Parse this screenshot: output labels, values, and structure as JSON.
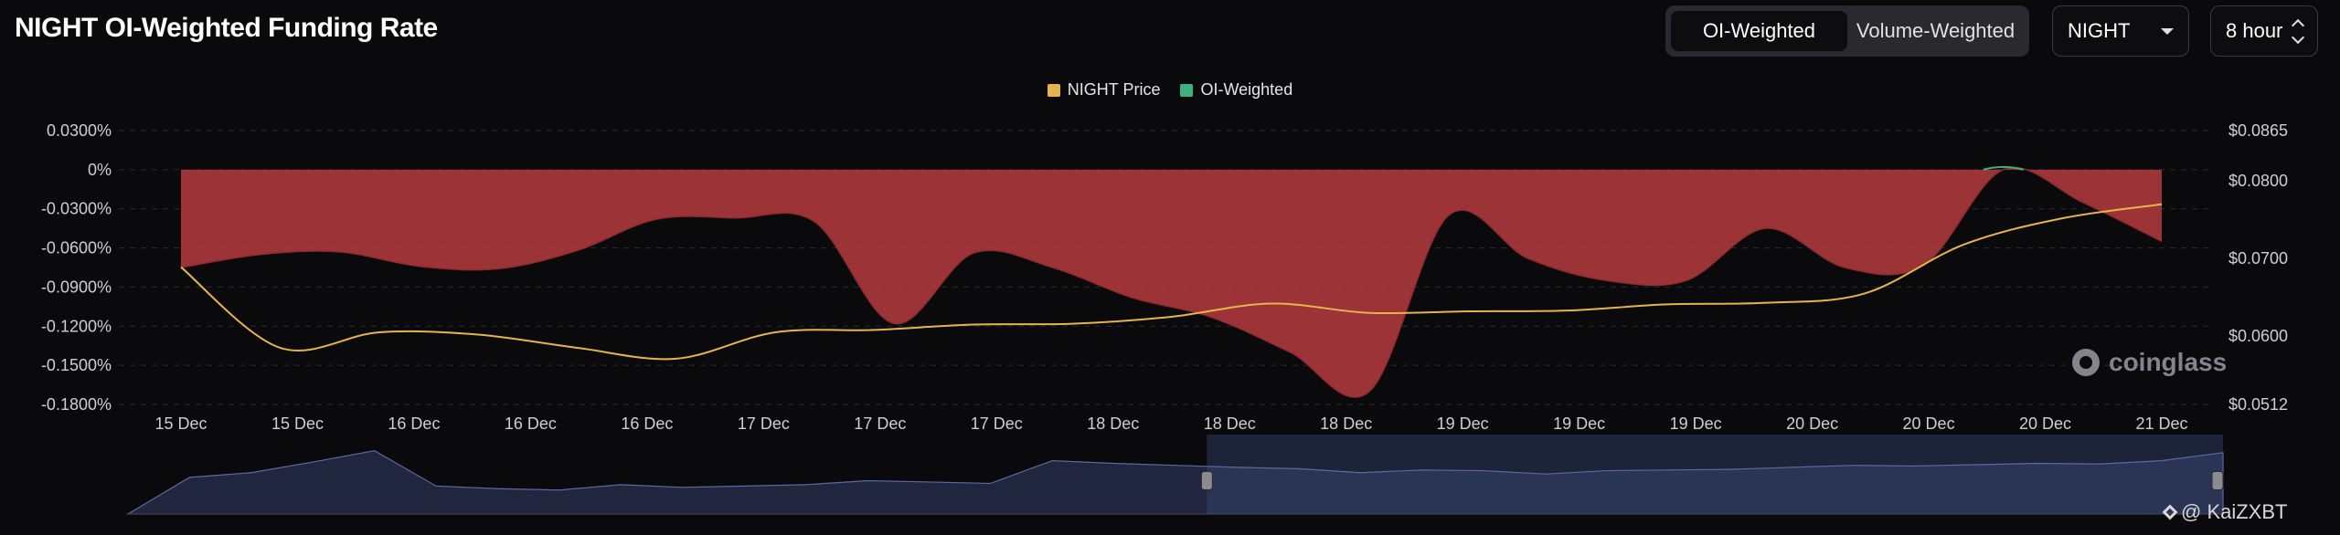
{
  "header": {
    "title": "NIGHT OI-Weighted Funding Rate"
  },
  "controls": {
    "tabs": [
      {
        "label": "OI-Weighted",
        "active": true
      },
      {
        "label": "Volume-Weighted",
        "active": false
      }
    ],
    "coin": "NIGHT",
    "interval": "8 hour"
  },
  "watermark": "coinglass",
  "credit": "@ KaiZXBT",
  "colors": {
    "price": "#e5b44f",
    "funding_negative": "#b13a3d",
    "funding_positive": "#3fb37f",
    "background": "#0a0a0c"
  },
  "chart_data": {
    "type": "area",
    "legend": [
      {
        "name": "NIGHT Price",
        "color": "#e5b44f"
      },
      {
        "name": "OI-Weighted",
        "color": "#3fb37f"
      }
    ],
    "legend_position": "top-center",
    "grid": true,
    "x_tick_labels": [
      "15 Dec",
      "15 Dec",
      "16 Dec",
      "16 Dec",
      "16 Dec",
      "17 Dec",
      "17 Dec",
      "17 Dec",
      "18 Dec",
      "18 Dec",
      "18 Dec",
      "19 Dec",
      "19 Dec",
      "19 Dec",
      "20 Dec",
      "20 Dec",
      "20 Dec",
      "21 Dec"
    ],
    "y_left": {
      "tick_labels": [
        "0.0300%",
        "0%",
        "-0.0300%",
        "-0.0600%",
        "-0.0900%",
        "-0.1200%",
        "-0.1500%",
        "-0.1800%"
      ],
      "tick_values": [
        0.03,
        0,
        -0.03,
        -0.06,
        -0.09,
        -0.12,
        -0.15,
        -0.18
      ],
      "range": [
        -0.18,
        0.03
      ]
    },
    "y_right": {
      "tick_labels": [
        "$0.0865",
        "$0.0800",
        "$0.0700",
        "$0.0600",
        "$0.0512"
      ],
      "tick_values": [
        0.0865,
        0.08,
        0.07,
        0.06,
        0.0512
      ],
      "range": [
        0.0512,
        0.0865
      ]
    },
    "series": [
      {
        "name": "OI-Weighted",
        "axis": "left",
        "values": [
          -0.075,
          -0.065,
          -0.063,
          -0.074,
          -0.076,
          -0.062,
          -0.038,
          -0.037,
          -0.04,
          -0.118,
          -0.064,
          -0.075,
          -0.098,
          -0.113,
          -0.14,
          -0.17,
          -0.035,
          -0.068,
          -0.085,
          -0.085,
          -0.045,
          -0.075,
          -0.073,
          -0.0,
          -0.025,
          -0.055
        ]
      },
      {
        "name": "NIGHT Price",
        "axis": "right",
        "values": [
          0.0689,
          0.0585,
          0.0605,
          0.0602,
          0.0585,
          0.0571,
          0.0605,
          0.0608,
          0.0615,
          0.0616,
          0.0625,
          0.0642,
          0.063,
          0.0632,
          0.0633,
          0.0641,
          0.0643,
          0.0655,
          0.0718,
          0.0752,
          0.077
        ]
      }
    ],
    "navigator": {
      "values": [
        0.0,
        0.55,
        0.62,
        0.78,
        0.95,
        0.42,
        0.38,
        0.36,
        0.44,
        0.4,
        0.42,
        0.44,
        0.5,
        0.48,
        0.46,
        0.8,
        0.76,
        0.73,
        0.7,
        0.68,
        0.62,
        0.66,
        0.65,
        0.6,
        0.65,
        0.66,
        0.67,
        0.7,
        0.73,
        0.72,
        0.74,
        0.76,
        0.75,
        0.8,
        0.92
      ],
      "selected_range": [
        0.515,
        1.0
      ]
    }
  }
}
